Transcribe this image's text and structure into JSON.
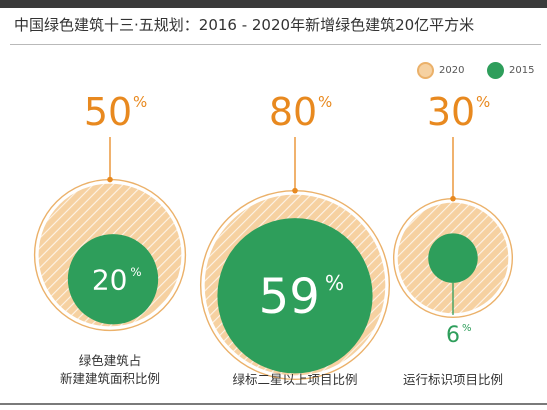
{
  "title": "中国绿色建筑十三·五规划：2016 - 2020年新增绿色建筑20亿平方米",
  "colors": {
    "fill_2020": "#f6d1a1",
    "stroke_2020": "#ebb16a",
    "fill_2015": "#2e9e5b",
    "accent": "#e8891f",
    "text": "#333333"
  },
  "legend": [
    {
      "label": "2020",
      "icon": "circle-swatch-2020"
    },
    {
      "label": "2015",
      "icon": "circle-swatch-2015"
    }
  ],
  "chart_data": {
    "type": "bubble",
    "series": [
      {
        "name": "2020",
        "values": [
          50,
          80,
          30
        ]
      },
      {
        "name": "2015",
        "values": [
          20,
          59,
          6
        ]
      }
    ],
    "groups": [
      {
        "label_lines": [
          "绿色建筑占",
          "新建建筑面积比例"
        ],
        "value_2020": 50,
        "value_2015": 20,
        "label_2020": "50",
        "label_2015": "20",
        "unit": "%"
      },
      {
        "label_lines": [
          "绿标二星以上项目比例"
        ],
        "value_2020": 80,
        "value_2015": 59,
        "label_2020": "80",
        "label_2015": "59",
        "unit": "%"
      },
      {
        "label_lines": [
          "运行标识项目比例"
        ],
        "value_2020": 30,
        "value_2015": 6,
        "label_2020": "30",
        "label_2015": "6",
        "unit": "%"
      }
    ]
  }
}
